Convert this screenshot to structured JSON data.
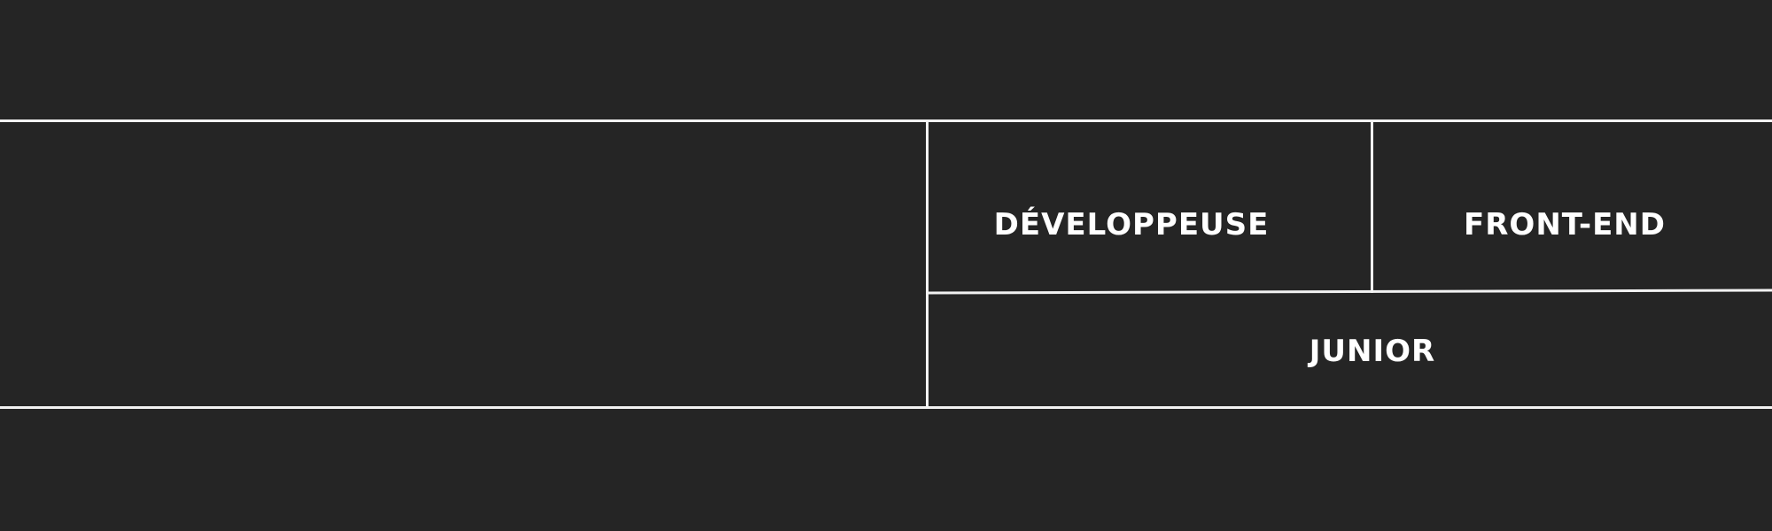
{
  "title_block": {
    "word_1": "DÉVELOPPEUSE",
    "word_2": "FRONT-END",
    "word_3": "JUNIOR"
  },
  "colors": {
    "background": "#252525",
    "line": "#f2f2f2",
    "text": "#ffffff"
  }
}
